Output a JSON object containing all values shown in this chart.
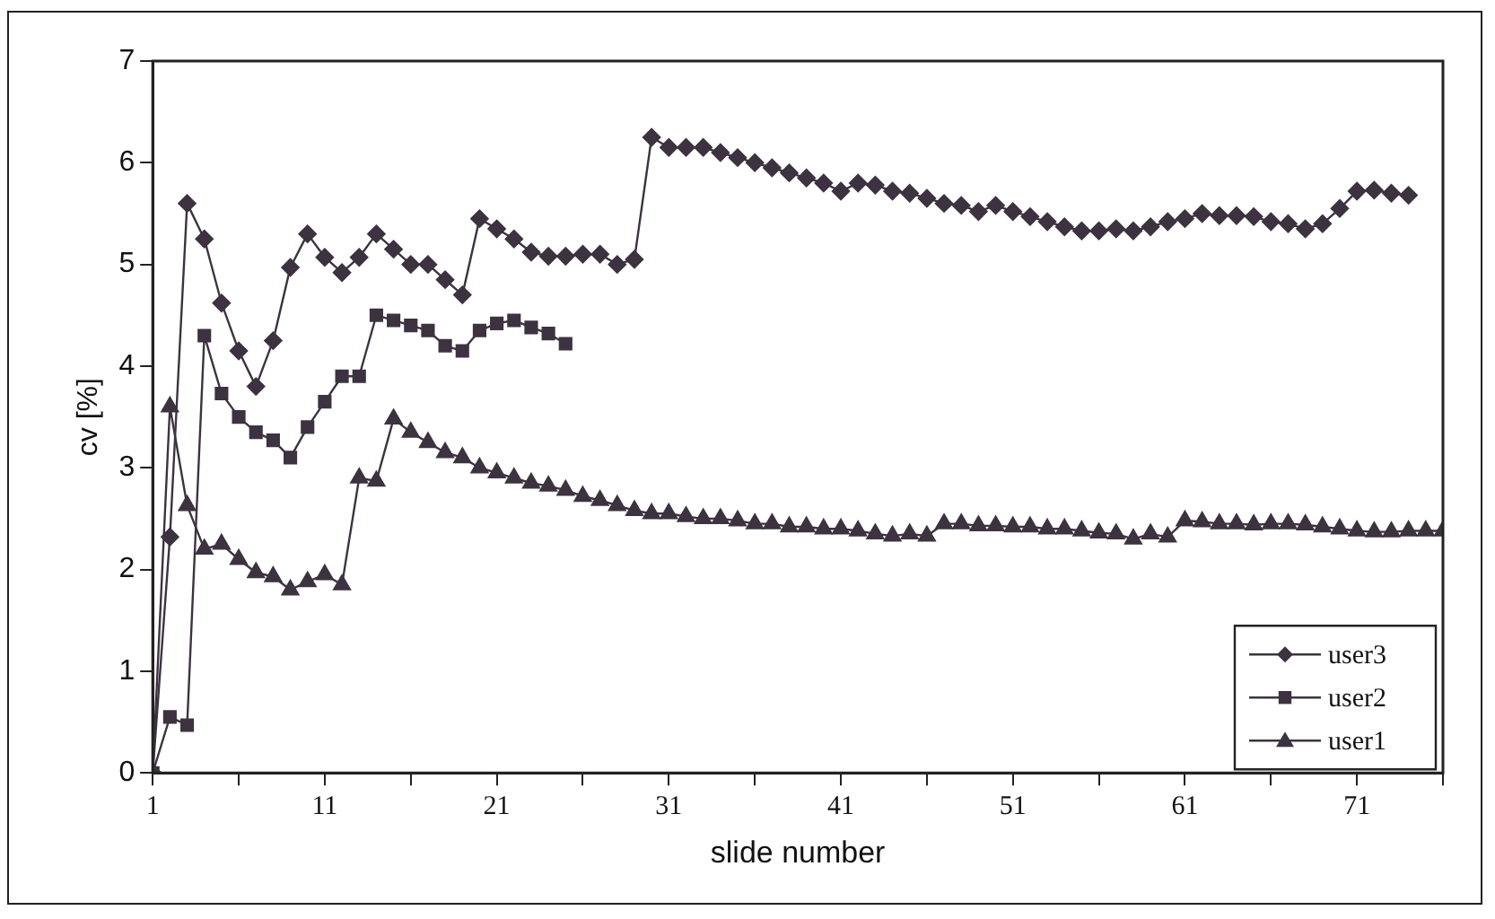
{
  "chart_data": {
    "type": "line",
    "xlabel": "slide number",
    "ylabel": "cv [%]",
    "x": [
      1,
      2,
      3,
      4,
      5,
      6,
      7,
      8,
      9,
      10,
      11,
      12,
      13,
      14,
      15,
      16,
      17,
      18,
      19,
      20,
      21,
      22,
      23,
      24,
      25,
      26,
      27,
      28,
      29,
      30,
      31,
      32,
      33,
      34,
      35,
      36,
      37,
      38,
      39,
      40,
      41,
      42,
      43,
      44,
      45,
      46,
      47,
      48,
      49,
      50,
      51,
      52,
      53,
      54,
      55,
      56,
      57,
      58,
      59,
      60,
      61,
      62,
      63,
      64,
      65,
      66,
      67,
      68,
      69,
      70,
      71,
      72,
      73,
      74,
      75,
      76
    ],
    "xlim": [
      1,
      76
    ],
    "xticks": [
      1,
      {
        "value": 6,
        "label": null
      },
      11,
      {
        "value": 16,
        "label": null
      },
      21,
      {
        "value": 26,
        "label": null
      },
      31,
      {
        "value": 36,
        "label": null
      },
      41,
      {
        "value": 46,
        "label": null
      },
      51,
      {
        "value": 56,
        "label": null
      },
      61,
      {
        "value": 66,
        "label": null
      },
      71,
      {
        "value": 76,
        "label": null
      }
    ],
    "ylim": [
      0,
      7
    ],
    "yticks": [
      0,
      1,
      2,
      3,
      4,
      5,
      6,
      7
    ],
    "grid": false,
    "legend": "bottom right",
    "line_style": "solid",
    "series": [
      {
        "name": "user3",
        "color": "#3d3340",
        "marker": "diamond",
        "values": [
          0,
          2.32,
          5.6,
          5.25,
          4.62,
          4.15,
          3.8,
          4.25,
          4.97,
          5.3,
          5.07,
          4.92,
          5.07,
          5.3,
          5.15,
          5.0,
          5.0,
          4.85,
          4.7,
          5.45,
          5.35,
          5.25,
          5.12,
          5.08,
          5.08,
          5.1,
          5.1,
          5.0,
          5.05,
          6.25,
          6.15,
          6.15,
          6.15,
          6.1,
          6.05,
          6.0,
          5.95,
          5.9,
          5.85,
          5.8,
          5.72,
          5.8,
          5.78,
          5.72,
          5.7,
          5.65,
          5.6,
          5.58,
          5.52,
          5.58,
          5.52,
          5.47,
          5.42,
          5.37,
          5.33,
          5.33,
          5.35,
          5.33,
          5.37,
          5.42,
          5.45,
          5.5,
          5.48,
          5.48,
          5.47,
          5.42,
          5.4,
          5.35,
          5.4,
          5.55,
          5.72,
          5.73,
          5.7,
          5.68,
          null,
          null
        ]
      },
      {
        "name": "user2",
        "color": "#3d3340",
        "marker": "square",
        "values": [
          0,
          0.55,
          0.47,
          4.3,
          3.73,
          3.5,
          3.35,
          3.27,
          3.1,
          3.4,
          3.65,
          3.9,
          3.9,
          4.5,
          4.45,
          4.4,
          4.35,
          4.2,
          4.15,
          4.35,
          4.42,
          4.45,
          4.38,
          4.32,
          4.22,
          null,
          null,
          null,
          null,
          null,
          null,
          null,
          null,
          null,
          null,
          null,
          null,
          null,
          null,
          null,
          null,
          null,
          null,
          null,
          null,
          null,
          null,
          null,
          null,
          null,
          null,
          null,
          null,
          null,
          null,
          null,
          null,
          null,
          null,
          null,
          null,
          null,
          null,
          null,
          null,
          null,
          null,
          null,
          null,
          null,
          null,
          null,
          null,
          null,
          null,
          null
        ]
      },
      {
        "name": "user1",
        "color": "#3d3340",
        "marker": "triangle",
        "values": [
          0,
          3.6,
          2.63,
          2.2,
          2.25,
          2.1,
          1.97,
          1.93,
          1.8,
          1.88,
          1.95,
          1.85,
          2.9,
          2.87,
          3.48,
          3.35,
          3.25,
          3.15,
          3.1,
          3.0,
          2.95,
          2.9,
          2.85,
          2.82,
          2.78,
          2.72,
          2.68,
          2.63,
          2.58,
          2.55,
          2.55,
          2.52,
          2.5,
          2.5,
          2.48,
          2.45,
          2.45,
          2.42,
          2.42,
          2.4,
          2.4,
          2.38,
          2.35,
          2.33,
          2.35,
          2.33,
          2.45,
          2.45,
          2.43,
          2.43,
          2.42,
          2.42,
          2.4,
          2.4,
          2.38,
          2.36,
          2.35,
          2.3,
          2.35,
          2.32,
          2.48,
          2.47,
          2.45,
          2.45,
          2.44,
          2.45,
          2.45,
          2.44,
          2.42,
          2.4,
          2.38,
          2.37,
          2.37,
          2.38,
          2.38,
          2.38
        ]
      }
    ]
  }
}
